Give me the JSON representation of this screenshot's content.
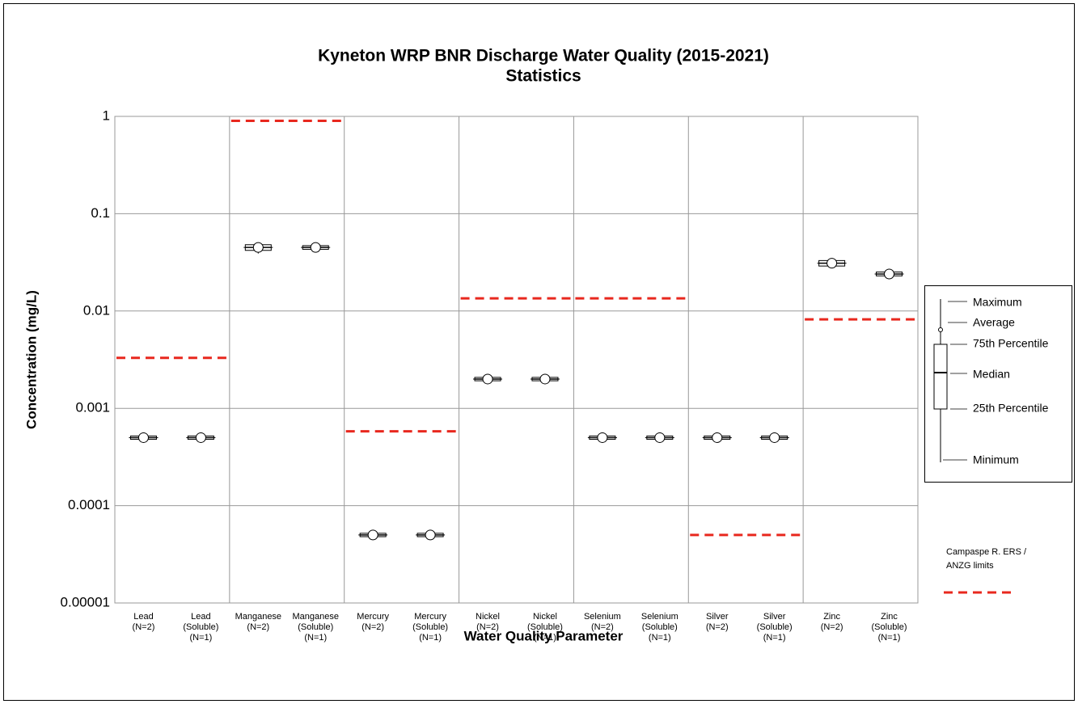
{
  "chart_data": {
    "type": "box",
    "title": [
      "Kyneton WRP BNR Discharge Water Quality (2015-2021)",
      "Statistics"
    ],
    "x_label": "Water Quality Parameter",
    "y_label": "Concentration (mg/L)",
    "log_y": true,
    "grid": true,
    "categories": [
      [
        "Lead",
        "(N=2)"
      ],
      [
        "Lead",
        "(Soluble)",
        "(N=1)"
      ],
      [
        "Manganese",
        "(N=2)"
      ],
      [
        "Manganese",
        "(Soluble)",
        "(N=1)"
      ],
      [
        "Mercury",
        "(N=2)"
      ],
      [
        "Mercury",
        "(Soluble)",
        "(N=1)"
      ],
      [
        "Nickel",
        "(N=2)"
      ],
      [
        "Nickel",
        "(Soluble)",
        "(N=1)"
      ],
      [
        "Selenium",
        "(N=2)"
      ],
      [
        "Selenium",
        "(Soluble)",
        "(N=1)"
      ],
      [
        "Silver",
        "(N=2)"
      ],
      [
        "Silver",
        "(Soluble)",
        "(N=1)"
      ],
      [
        "Zinc",
        "(N=2)"
      ],
      [
        "Zinc",
        "(Soluble)",
        "(N=1)"
      ]
    ],
    "stats": [
      {
        "min": 0.00048,
        "q1": 0.00048,
        "median": 0.0005,
        "q3": 0.00052,
        "max": 0.00052,
        "mean": 0.0005
      },
      {
        "min": 0.00048,
        "q1": 0.00048,
        "median": 0.0005,
        "q3": 0.00052,
        "max": 0.00052,
        "mean": 0.0005
      },
      {
        "min": 0.039,
        "q1": 0.042,
        "median": 0.045,
        "q3": 0.048,
        "max": 0.049,
        "mean": 0.045
      },
      {
        "min": 0.0435,
        "q1": 0.0435,
        "median": 0.045,
        "q3": 0.0465,
        "max": 0.0465,
        "mean": 0.045
      },
      {
        "min": 4.8e-05,
        "q1": 4.8e-05,
        "median": 5e-05,
        "q3": 5.2e-05,
        "max": 5.2e-05,
        "mean": 5e-05
      },
      {
        "min": 4.8e-05,
        "q1": 4.8e-05,
        "median": 5e-05,
        "q3": 5.2e-05,
        "max": 5.2e-05,
        "mean": 5e-05
      },
      {
        "min": 0.00192,
        "q1": 0.00192,
        "median": 0.002,
        "q3": 0.00208,
        "max": 0.00208,
        "mean": 0.002
      },
      {
        "min": 0.00192,
        "q1": 0.00192,
        "median": 0.002,
        "q3": 0.00208,
        "max": 0.00208,
        "mean": 0.002
      },
      {
        "min": 0.00048,
        "q1": 0.00048,
        "median": 0.0005,
        "q3": 0.00052,
        "max": 0.00052,
        "mean": 0.0005
      },
      {
        "min": 0.00048,
        "q1": 0.00048,
        "median": 0.0005,
        "q3": 0.00052,
        "max": 0.00052,
        "mean": 0.0005
      },
      {
        "min": 0.00048,
        "q1": 0.00048,
        "median": 0.0005,
        "q3": 0.00052,
        "max": 0.00052,
        "mean": 0.0005
      },
      {
        "min": 0.00048,
        "q1": 0.00048,
        "median": 0.0005,
        "q3": 0.00052,
        "max": 0.00052,
        "mean": 0.0005
      },
      {
        "min": 0.028,
        "q1": 0.029,
        "median": 0.031,
        "q3": 0.033,
        "max": 0.034,
        "mean": 0.031
      },
      {
        "min": 0.0233,
        "q1": 0.0233,
        "median": 0.024,
        "q3": 0.0248,
        "max": 0.0248,
        "mean": 0.024
      }
    ],
    "limits": [
      0.0033,
      0.0033,
      0.9,
      0.9,
      0.00058,
      0.00058,
      0.0135,
      0.0135,
      0.0135,
      0.0135,
      5e-05,
      5e-05,
      0.0082,
      0.0082
    ],
    "limit_color": "#e8281e",
    "limit_name": [
      "Campaspe R. ERS /",
      "ANZG limits"
    ],
    "legend_labels": [
      "Maximum",
      "Average",
      "75th Percentile",
      "Median",
      "25th Percentile",
      "Minimum"
    ],
    "ylim": [
      1e-05,
      1
    ],
    "yticks": [
      1,
      0.1,
      0.01,
      0.001,
      0.0001,
      {
        "value": 1e-05,
        "label": "0.00001"
      }
    ]
  }
}
